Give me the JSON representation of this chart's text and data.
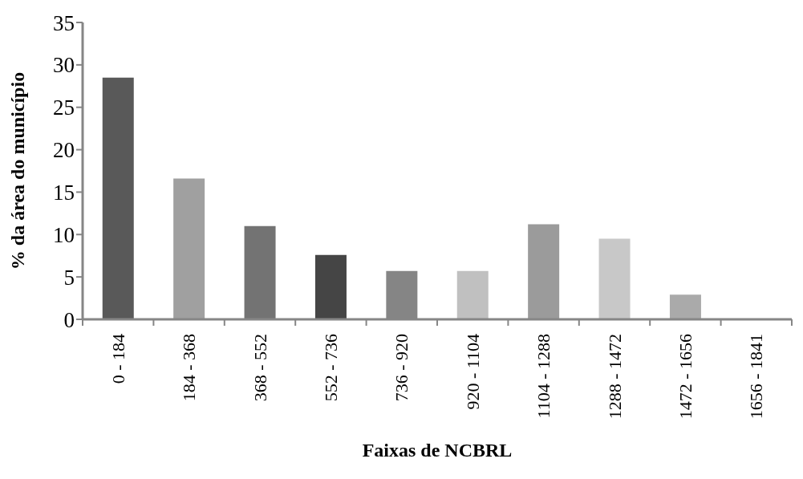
{
  "chart_data": {
    "type": "bar",
    "xlabel": "Faixas de NCBRL",
    "ylabel": "% da área do município",
    "categories": [
      "0 - 184",
      "184 - 368",
      "368 - 552",
      "552 - 736",
      "736 - 920",
      "920 - 1104",
      "1104 - 1288",
      "1288 - 1472",
      "1472 - 1656",
      "1656 - 1841"
    ],
    "values": [
      28.5,
      16.6,
      11.0,
      7.6,
      5.7,
      5.7,
      11.2,
      9.5,
      2.9,
      0.1
    ],
    "colors": [
      "#595959",
      "#a0a0a0",
      "#737373",
      "#454545",
      "#858585",
      "#c0c0c0",
      "#9b9b9b",
      "#c8c8c8",
      "#aaaaaa",
      "#8c8c8c"
    ],
    "ylim": [
      0,
      35
    ],
    "yticks": [
      0,
      5,
      10,
      15,
      20,
      25,
      30,
      35
    ],
    "grid": false,
    "legend": false
  }
}
